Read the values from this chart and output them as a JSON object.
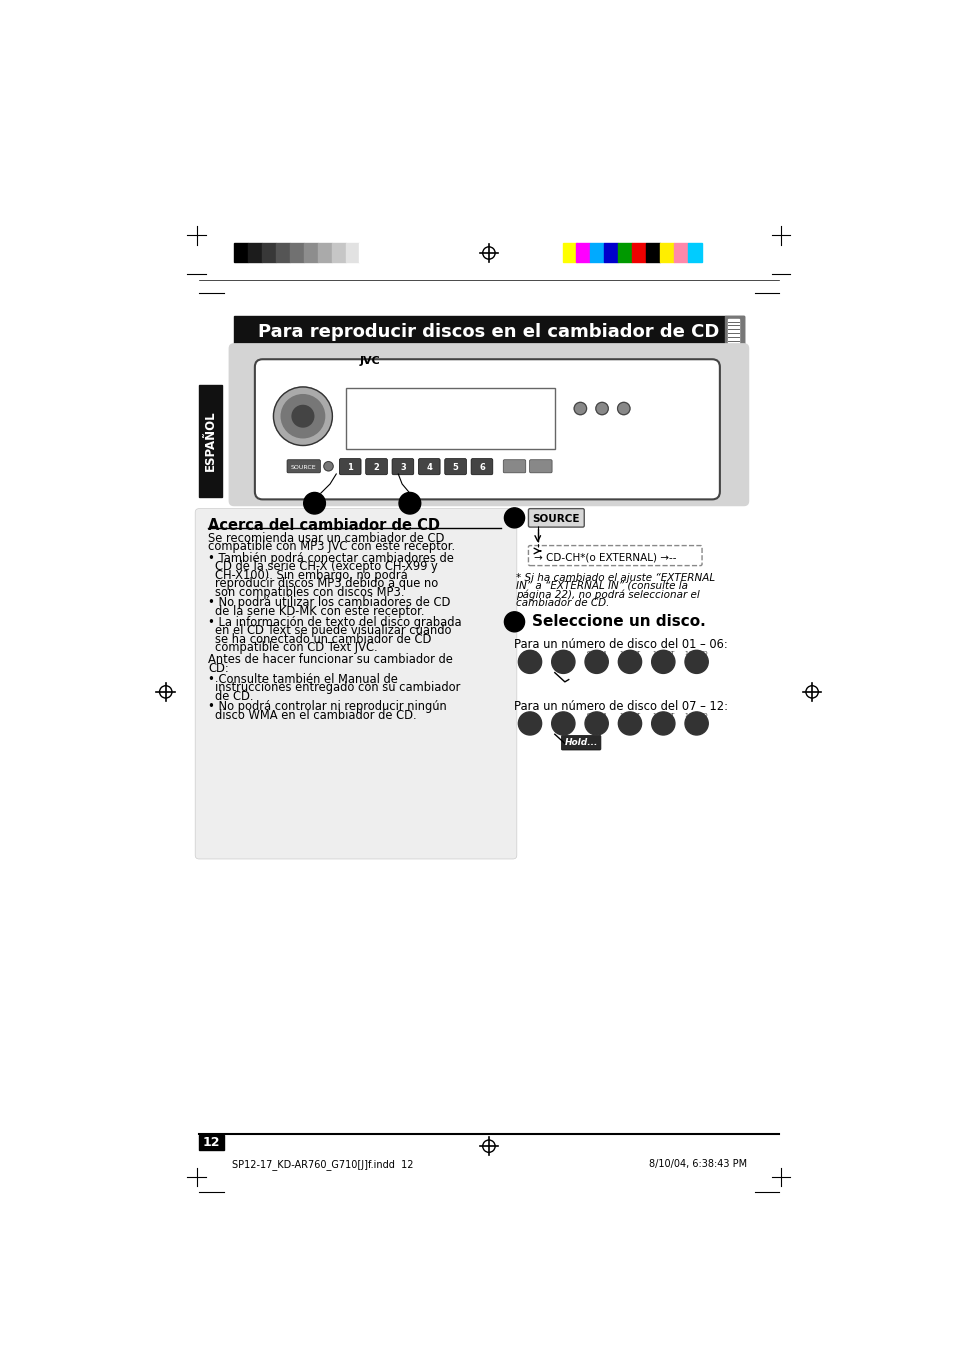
{
  "page_bg": "#ffffff",
  "title_text": "Para reproducir discos en el cambiador de CD",
  "espanol_text": "ESPAÑOL",
  "section_title": "Acerca del cambiador de CD",
  "step2_title": "Seleccione un disco.",
  "para_disc_01": "Para un número de disco del 01 – 06:",
  "para_disc_07": "Para un número de disco del 07 – 12:",
  "footer_text_left": "SP12-17_KD-AR760_G710[J]f.indd  12",
  "footer_text_right": "8/10/04, 6:38:43 PM",
  "page_number": "12",
  "gray_colors": [
    "#000000",
    "#1c1c1c",
    "#383838",
    "#555555",
    "#717171",
    "#8d8d8d",
    "#aaaaaa",
    "#c6c6c6",
    "#e2e2e2",
    "#ffffff"
  ],
  "color_bars": [
    "#ffff00",
    "#ff00ff",
    "#00aaff",
    "#0000cc",
    "#009900",
    "#ee0000",
    "#000000",
    "#ffee00",
    "#ff88aa",
    "#00ccff"
  ]
}
